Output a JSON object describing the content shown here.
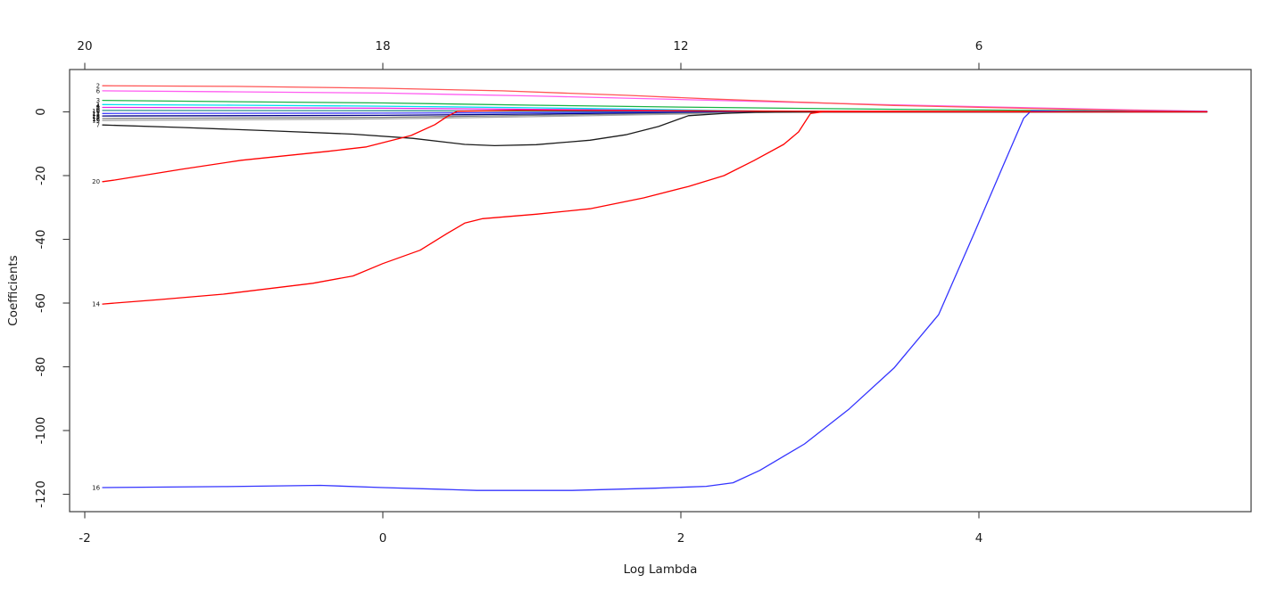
{
  "chart_data": {
    "type": "line",
    "title": "",
    "xlabel": "Log Lambda",
    "ylabel": "Coefficients",
    "grid": false,
    "legend": "none",
    "background": "#ffffff",
    "axis_color": "#3d3d3d",
    "text_color": "#1a1a1a",
    "xlim": [
      -2.1,
      5.84
    ],
    "ylim": [
      -125.6,
      13.1
    ],
    "x_ticks": [
      "-2",
      "0",
      "2",
      "4"
    ],
    "x_tick_values": [
      -2,
      0,
      2,
      4
    ],
    "y_ticks": [
      "0",
      "-20",
      "-40",
      "-60",
      "-80",
      "-100",
      "-120"
    ],
    "y_tick_values": [
      0,
      -20,
      -40,
      -60,
      -80,
      -100,
      -120
    ],
    "top_axis": {
      "labels": [
        "20",
        "18",
        "12",
        "6"
      ],
      "at": [
        -2,
        0,
        2,
        4
      ]
    },
    "series": [
      {
        "label": "1",
        "color": "#00dff0",
        "points": [
          [
            -1.88,
            2.3
          ],
          [
            -1,
            2.1
          ],
          [
            0,
            1.8
          ],
          [
            1,
            1.3
          ],
          [
            1.63,
            0.9
          ],
          [
            2.23,
            0.45
          ],
          [
            2.63,
            0.2
          ],
          [
            3,
            0.08
          ],
          [
            5.53,
            0.02
          ]
        ]
      },
      {
        "label": "5",
        "color": "#e621e6",
        "points": [
          [
            -1.88,
            1.4
          ],
          [
            0,
            1.15
          ],
          [
            1,
            0.8
          ],
          [
            1.63,
            0.55
          ],
          [
            2.23,
            0.25
          ],
          [
            2.63,
            0.1
          ],
          [
            5.53,
            0.02
          ]
        ]
      },
      {
        "label": "9",
        "color": "#2e8b8b",
        "points": [
          [
            -1.88,
            0.45
          ],
          [
            0,
            0.35
          ],
          [
            1,
            0.22
          ],
          [
            2,
            0.08
          ],
          [
            2.63,
            0.02
          ],
          [
            5.53,
            0
          ]
        ]
      },
      {
        "label": "11",
        "color": "#3c3cff",
        "points": [
          [
            -1.88,
            -0.5
          ],
          [
            0,
            -0.4
          ],
          [
            1,
            -0.25
          ],
          [
            2,
            -0.08
          ],
          [
            2.63,
            -0.01
          ],
          [
            5.53,
            0
          ]
        ]
      },
      {
        "label": "13",
        "color": "#000080",
        "points": [
          [
            -1.88,
            -1.3
          ],
          [
            0,
            -1.1
          ],
          [
            1,
            -0.7
          ],
          [
            2,
            -0.25
          ],
          [
            2.63,
            -0.04
          ],
          [
            5.53,
            0
          ]
        ]
      },
      {
        "label": "17",
        "color": "#808080",
        "points": [
          [
            -1.88,
            -2.1
          ],
          [
            0,
            -1.7
          ],
          [
            1,
            -1.1
          ],
          [
            2,
            -0.45
          ],
          [
            2.63,
            -0.08
          ],
          [
            5.53,
            0
          ]
        ]
      },
      {
        "label": "19",
        "color": "#a6a6a6",
        "points": [
          [
            -1.88,
            -2.7
          ],
          [
            0,
            -2.2
          ],
          [
            1,
            -1.5
          ],
          [
            2,
            -0.7
          ],
          [
            2.63,
            -0.15
          ],
          [
            3.03,
            -0.03
          ],
          [
            5.53,
            0
          ]
        ]
      },
      {
        "label": "3",
        "color": "#19b344",
        "points": [
          [
            -1.88,
            3.6
          ],
          [
            -1,
            3.2
          ],
          [
            0,
            2.8
          ],
          [
            1,
            2.1
          ],
          [
            1.99,
            1.5
          ],
          [
            2.83,
            1.1
          ],
          [
            3.43,
            0.8
          ],
          [
            4.03,
            0.6
          ],
          [
            4.63,
            0.35
          ],
          [
            5.05,
            0.2
          ],
          [
            5.53,
            0.05
          ]
        ]
      },
      {
        "label": "6",
        "color": "#ff5cf1",
        "points": [
          [
            -1.88,
            6.6
          ],
          [
            -1,
            6.3
          ],
          [
            0,
            5.9
          ],
          [
            1,
            5.0
          ],
          [
            1.63,
            4.3
          ],
          [
            2.23,
            3.6
          ],
          [
            2.83,
            2.9
          ],
          [
            3.43,
            2.2
          ],
          [
            4.03,
            1.6
          ],
          [
            4.63,
            1.0
          ],
          [
            5.05,
            0.6
          ],
          [
            5.53,
            0.2
          ]
        ]
      },
      {
        "label": "2",
        "color": "#ff5555",
        "points": [
          [
            -1.88,
            8.2
          ],
          [
            -1,
            8.0
          ],
          [
            0,
            7.4
          ],
          [
            0.8,
            6.6
          ],
          [
            1.63,
            5.2
          ],
          [
            2.23,
            4.0
          ],
          [
            2.83,
            3.0
          ],
          [
            3.43,
            2.0
          ],
          [
            4.03,
            1.4
          ],
          [
            4.63,
            0.8
          ],
          [
            5.05,
            0.45
          ],
          [
            5.53,
            0.15
          ]
        ]
      },
      {
        "label": "7",
        "color": "#1c1c1c",
        "points": [
          [
            -1.88,
            -4.1
          ],
          [
            -1.35,
            -4.9
          ],
          [
            -0.77,
            -5.9
          ],
          [
            -0.2,
            -7.0
          ],
          [
            0.2,
            -8.3
          ],
          [
            0.55,
            -10.2
          ],
          [
            0.75,
            -10.6
          ],
          [
            1.03,
            -10.3
          ],
          [
            1.39,
            -8.9
          ],
          [
            1.63,
            -7.2
          ],
          [
            1.85,
            -4.6
          ],
          [
            2.05,
            -1.2
          ],
          [
            2.3,
            -0.45
          ],
          [
            2.5,
            -0.12
          ],
          [
            2.9,
            -0.03
          ],
          [
            5.53,
            0
          ]
        ]
      },
      {
        "label": "20",
        "color": "#ff0000",
        "points": [
          [
            -1.88,
            -21.9
          ],
          [
            -1.8,
            -21.4
          ],
          [
            -1.35,
            -18.0
          ],
          [
            -0.95,
            -15.2
          ],
          [
            -0.37,
            -12.4
          ],
          [
            -0.11,
            -11.0
          ],
          [
            0.19,
            -7.4
          ],
          [
            0.35,
            -4.0
          ],
          [
            0.43,
            -1.5
          ],
          [
            0.5,
            0.2
          ],
          [
            0.9,
            0.5
          ],
          [
            1.63,
            0.4
          ],
          [
            2.83,
            0.2
          ],
          [
            5.53,
            0.05
          ]
        ]
      },
      {
        "label": "16",
        "color": "#3434ff",
        "points": [
          [
            -1.88,
            -117.9
          ],
          [
            -1.07,
            -117.6
          ],
          [
            -0.42,
            -117.2
          ],
          [
            0,
            -117.9
          ],
          [
            0.37,
            -118.4
          ],
          [
            0.63,
            -118.8
          ],
          [
            1.27,
            -118.8
          ],
          [
            1.83,
            -118.1
          ],
          [
            2.17,
            -117.5
          ],
          [
            2.35,
            -116.4
          ],
          [
            2.53,
            -112.5
          ],
          [
            2.83,
            -104.2
          ],
          [
            3.13,
            -93.2
          ],
          [
            3.43,
            -80.4
          ],
          [
            3.73,
            -63.6
          ],
          [
            3.97,
            -37.9
          ],
          [
            4.15,
            -18.3
          ],
          [
            4.3,
            -2.0
          ],
          [
            4.35,
            0.3
          ],
          [
            4.6,
            0.15
          ],
          [
            5.53,
            0.05
          ]
        ]
      },
      {
        "label": "14",
        "color": "#ff0000",
        "points": [
          [
            -1.88,
            -60.3
          ],
          [
            -1.5,
            -58.9
          ],
          [
            -1.07,
            -57.2
          ],
          [
            -0.47,
            -53.8
          ],
          [
            -0.2,
            -51.5
          ],
          [
            0,
            -47.6
          ],
          [
            0.25,
            -43.4
          ],
          [
            0.43,
            -38.2
          ],
          [
            0.55,
            -34.9
          ],
          [
            0.67,
            -33.5
          ],
          [
            1.03,
            -32.1
          ],
          [
            1.39,
            -30.4
          ],
          [
            1.75,
            -27.0
          ],
          [
            2.05,
            -23.4
          ],
          [
            2.29,
            -20.0
          ],
          [
            2.49,
            -15.3
          ],
          [
            2.69,
            -10.2
          ],
          [
            2.79,
            -6.3
          ],
          [
            2.87,
            -0.5
          ],
          [
            2.95,
            0
          ],
          [
            5.53,
            0
          ]
        ]
      }
    ],
    "overlap_labels": [
      {
        "text": "4",
        "value": 2.0
      },
      {
        "text": "8",
        "value": 1.2
      },
      {
        "text": "10",
        "value": 0.3
      },
      {
        "text": "12",
        "value": -0.6
      },
      {
        "text": "15",
        "value": -1.5
      },
      {
        "text": "18",
        "value": -2.3
      }
    ]
  }
}
